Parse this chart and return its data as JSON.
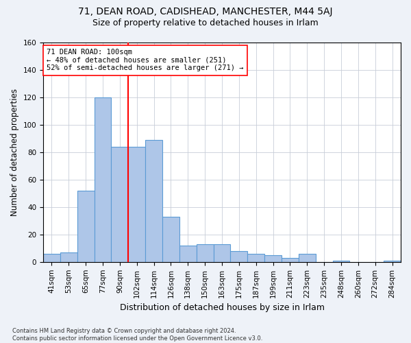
{
  "title1": "71, DEAN ROAD, CADISHEAD, MANCHESTER, M44 5AJ",
  "title2": "Size of property relative to detached houses in Irlam",
  "xlabel": "Distribution of detached houses by size in Irlam",
  "ylabel": "Number of detached properties",
  "footnote": "Contains HM Land Registry data © Crown copyright and database right 2024.\nContains public sector information licensed under the Open Government Licence v3.0.",
  "categories": [
    "41sqm",
    "53sqm",
    "65sqm",
    "77sqm",
    "90sqm",
    "102sqm",
    "114sqm",
    "126sqm",
    "138sqm",
    "150sqm",
    "163sqm",
    "175sqm",
    "187sqm",
    "199sqm",
    "211sqm",
    "223sqm",
    "235sqm",
    "248sqm",
    "260sqm",
    "272sqm",
    "284sqm"
  ],
  "values": [
    6,
    7,
    52,
    120,
    84,
    84,
    89,
    33,
    12,
    13,
    13,
    8,
    6,
    5,
    3,
    6,
    0,
    1,
    0,
    0,
    1
  ],
  "bar_color": "#aec6e8",
  "bar_edge_color": "#5b9bd5",
  "vline_x": 4.5,
  "vline_color": "red",
  "annotation_line1": "71 DEAN ROAD: 100sqm",
  "annotation_line2": "← 48% of detached houses are smaller (251)",
  "annotation_line3": "52% of semi-detached houses are larger (271) →",
  "annotation_box_color": "white",
  "annotation_box_edge": "red",
  "ylim": [
    0,
    160
  ],
  "yticks": [
    0,
    20,
    40,
    60,
    80,
    100,
    120,
    140,
    160
  ],
  "bg_color": "#eef2f8",
  "plot_bg": "white",
  "grid_color": "#c8cdd8",
  "title1_fontsize": 10,
  "title2_fontsize": 9,
  "xlabel_fontsize": 9,
  "ylabel_fontsize": 8.5,
  "tick_fontsize": 7.5,
  "annot_fontsize": 7.5
}
